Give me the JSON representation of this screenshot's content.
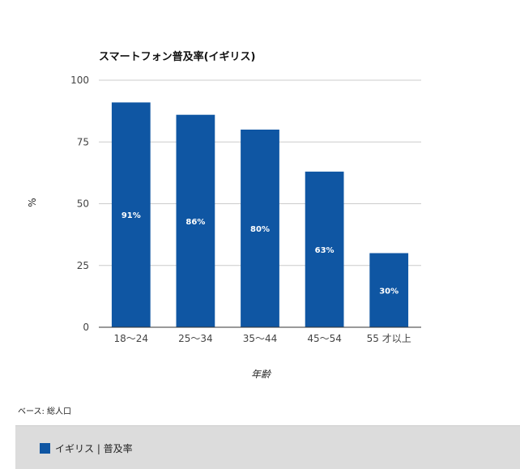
{
  "chart_data": {
    "type": "bar",
    "title": "スマートフォン普及率(イギリス)",
    "categories": [
      "18〜24",
      "25〜34",
      "35〜44",
      "45〜54",
      "55 才以上"
    ],
    "series": [
      {
        "name": "イギリス | 普及率",
        "values": [
          91,
          86,
          80,
          63,
          30
        ],
        "data_labels": [
          "91%",
          "86%",
          "80%",
          "63%",
          "30%"
        ]
      }
    ],
    "xlabel": "年齢",
    "ylabel": "%",
    "ylim": [
      0,
      100
    ],
    "yticks": [
      0,
      25,
      50,
      75,
      100
    ],
    "grid": true,
    "legend_position": "bottom"
  },
  "colors": {
    "bar": "#0f56a3",
    "grid": "#cccccc",
    "legend_bg": "#dcdcdc"
  },
  "footnote": "ベース: 総人口",
  "legend": {
    "label": "イギリス | 普及率"
  }
}
